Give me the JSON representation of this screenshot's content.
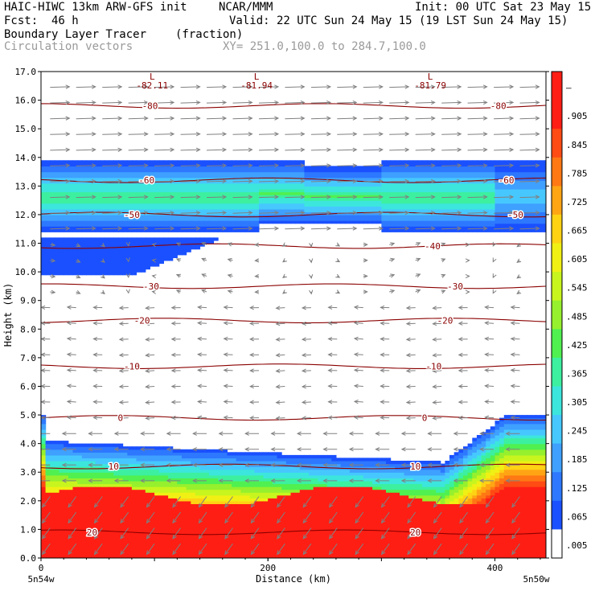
{
  "header": {
    "line1_left": "HAIC-HIWC 13km ARW-GFS init",
    "line1_mid": "NCAR/MMM",
    "line1_right": "Init: 00 UTC Sat 23 May 15",
    "line2_left": "Fcst:  46 h",
    "line2_right": "Valid: 22 UTC Sun 24 May 15 (19 LST Sun 24 May 15)",
    "line3_left": "Boundary Layer Tracer",
    "line3_units": "(fraction)",
    "line4_left": "Circulation vectors",
    "line4_xy": "XY= 251.0,100.0 to 284.7,100.0"
  },
  "colors": {
    "bl_scale": [
      "#ffffff",
      "#1a50ff",
      "#2d78ff",
      "#3fa0ff",
      "#46c8ff",
      "#3ce6dc",
      "#3cf0a0",
      "#50f050",
      "#96f02d",
      "#c8f51e",
      "#f0f014",
      "#ffd214",
      "#ffa514",
      "#ff7814",
      "#ff4b14",
      "#ff1e14",
      "#ff1e14"
    ],
    "contour": "#8b0000",
    "vector": "#808080"
  },
  "chart_data": {
    "type": "heatmap",
    "ylabel": "Height (km)",
    "xlabel": "Distance (km)",
    "xlim": [
      0,
      445
    ],
    "ylim": [
      0.0,
      17.0
    ],
    "y_ticks": [
      "0.0",
      "1.0",
      "2.0",
      "3.0",
      "4.0",
      "5.0",
      "6.0",
      "7.0",
      "8.0",
      "9.0",
      "10.0",
      "11.0",
      "12.0",
      "13.0",
      "14.0",
      "15.0",
      "16.0",
      "17.0"
    ],
    "x_ticks": [
      {
        "value": 0,
        "label": "0"
      },
      {
        "value": 200,
        "label": "200"
      },
      {
        "value": 400,
        "label": "400"
      }
    ],
    "x_endpoints": {
      "left": "5n54w",
      "right": "5n50w"
    },
    "colorbar": {
      "labels": [
        "–",
        ".905",
        ".845",
        ".785",
        ".725",
        ".665",
        ".605",
        ".545",
        ".485",
        ".425",
        ".365",
        ".305",
        ".245",
        ".185",
        ".125",
        ".065",
        ".005"
      ]
    },
    "temperature_contours": [
      {
        "value": -80,
        "height_km": 15.8,
        "labels": [
          {
            "x": 96,
            "text": "-80"
          },
          {
            "x": 403,
            "text": "-80"
          }
        ]
      },
      {
        "value": -60,
        "height_km": 13.2,
        "labels": [
          {
            "x": 93,
            "text": "-60"
          },
          {
            "x": 410,
            "text": "-60"
          }
        ]
      },
      {
        "value": -50,
        "height_km": 12.0,
        "labels": [
          {
            "x": 80,
            "text": "-50"
          },
          {
            "x": 418,
            "text": "-50"
          }
        ]
      },
      {
        "value": -40,
        "height_km": 10.9,
        "labels": [
          {
            "x": 345,
            "text": "-40"
          }
        ]
      },
      {
        "value": -30,
        "height_km": 9.5,
        "labels": [
          {
            "x": 97,
            "text": "-30"
          },
          {
            "x": 365,
            "text": "-30"
          }
        ]
      },
      {
        "value": -20,
        "height_km": 8.3,
        "labels": [
          {
            "x": 89,
            "text": "-20"
          },
          {
            "x": 356,
            "text": "-20"
          }
        ]
      },
      {
        "value": -10,
        "height_km": 6.7,
        "labels": [
          {
            "x": 80,
            "text": "-10"
          },
          {
            "x": 346,
            "text": "-10"
          }
        ]
      },
      {
        "value": 0,
        "height_km": 4.9,
        "labels": [
          {
            "x": 70,
            "text": "0"
          },
          {
            "x": 338,
            "text": "0"
          }
        ]
      },
      {
        "value": 10,
        "height_km": 3.2,
        "labels": [
          {
            "x": 64,
            "text": "10"
          },
          {
            "x": 330,
            "text": "10"
          }
        ]
      },
      {
        "value": 20,
        "height_km": 0.9,
        "labels": [
          {
            "x": 45,
            "text": "20"
          },
          {
            "x": 330,
            "text": "20"
          }
        ]
      }
    ],
    "lows": [
      {
        "x": 98,
        "y": 16.55,
        "label": "L",
        "value": "-82.11"
      },
      {
        "x": 190,
        "y": 16.55,
        "label": "L",
        "value": "-81.94"
      },
      {
        "x": 343,
        "y": 16.55,
        "label": "L",
        "value": "-81.79"
      }
    ],
    "regions": [
      {
        "name": "upper-outflow-layer",
        "bottom_km": 11.4,
        "top_km": 13.9,
        "peak_fraction": 0.4
      },
      {
        "name": "anvil-tail",
        "bottom_km": 9.9,
        "top_km": 11.2,
        "x_range": [
          0,
          160
        ],
        "peak_fraction": 0.07
      },
      {
        "name": "boundary-layer",
        "bottom_km": 0.0,
        "top_km_range": [
          3.1,
          5.0
        ],
        "peak_fraction": 0.99
      }
    ]
  }
}
